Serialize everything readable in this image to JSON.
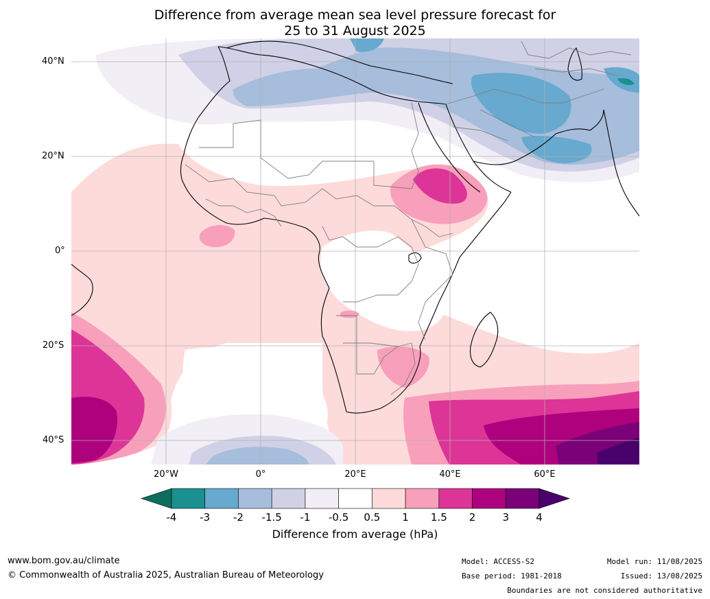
{
  "title": {
    "line1": "Difference from average mean sea level pressure forecast for",
    "line2": "25 to 31 August 2025"
  },
  "map": {
    "lat_labels": [
      "40°N",
      "20°N",
      "0°",
      "20°S",
      "40°S"
    ],
    "lon_labels": [
      "20°W",
      "0°",
      "20°E",
      "40°E",
      "60°E"
    ],
    "extent": {
      "lon": [
        -40,
        80
      ],
      "lat": [
        -45,
        45
      ]
    }
  },
  "colorbar": {
    "title": "Difference from average (hPa)",
    "labels": [
      "-4",
      "-3",
      "-2",
      "-1.5",
      "-1",
      "-0.5",
      "0.5",
      "1",
      "1.5",
      "2",
      "3",
      "4"
    ],
    "colors": [
      "#0d6e5e",
      "#1a9090",
      "#67a9cf",
      "#a6bddb",
      "#d0d1e6",
      "#f1eef6",
      "#ffffff",
      "#fddbdb",
      "#f89fbb",
      "#dd3497",
      "#ae017e",
      "#7a0177",
      "#49006a"
    ],
    "low_color": "#0d6e5e",
    "high_color": "#49006a"
  },
  "footer": {
    "website": "www.bom.gov.au/climate",
    "copyright": "© Commonwealth of Australia 2025, Australian Bureau of Meteorology",
    "model": "Model: ACCESS-S2",
    "base_period": "Base period: 1981-2018",
    "model_run": "Model run: 11/08/2025",
    "issued": "Issued: 13/08/2025",
    "disclaimer": "Boundaries are not considered authoritative"
  }
}
